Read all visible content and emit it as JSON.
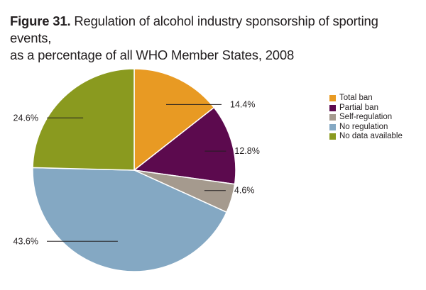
{
  "figure": {
    "number": "Figure 31.",
    "title_line1": "Regulation of alcohol industry sponsorship of sporting events,",
    "title_line2": "as a percentage of all WHO Member States, 2008"
  },
  "chart_data": {
    "type": "pie",
    "title": "Figure 31. Regulation of alcohol industry sponsorship of sporting events, as a percentage of all WHO Member States, 2008",
    "unit": "%",
    "legend_position": "right",
    "slices": [
      {
        "name": "Total ban",
        "value": 14.4,
        "label": "14.4%",
        "color": "#e89a23"
      },
      {
        "name": "Partial ban",
        "value": 12.8,
        "label": "12.8%",
        "color": "#5c0a4e"
      },
      {
        "name": "Self-regulation",
        "value": 4.6,
        "label": "4.6%",
        "color": "#a59a8e"
      },
      {
        "name": "No regulation",
        "value": 43.6,
        "label": "43.6%",
        "color": "#84a8c3"
      },
      {
        "name": "No data available",
        "value": 24.6,
        "label": "24.6%",
        "color": "#8a9a1f"
      }
    ]
  }
}
